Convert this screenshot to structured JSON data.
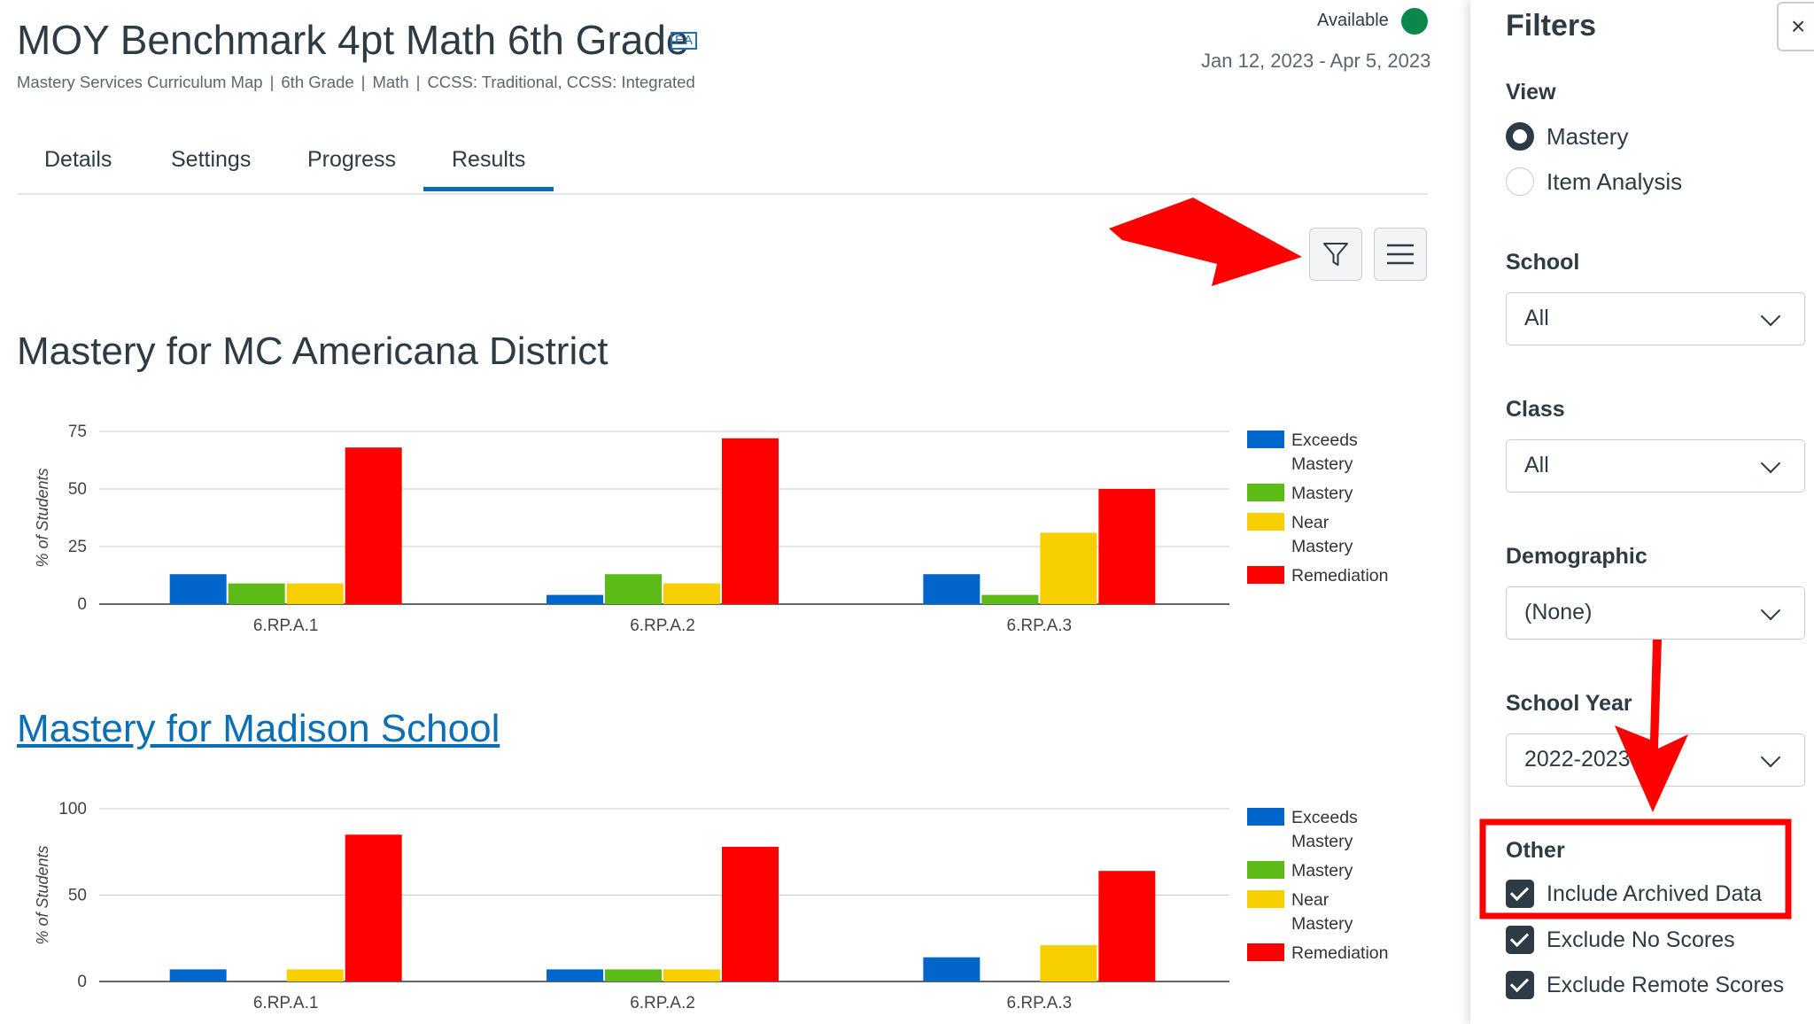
{
  "header": {
    "title": "MOY Benchmark 4pt Math 6th Grade",
    "badge": "EA",
    "breadcrumb": [
      "Mastery Services Curriculum Map",
      "6th Grade",
      "Math",
      "CCSS: Traditional, CCSS: Integrated"
    ],
    "breadcrumb_sep": "|",
    "status": "Available",
    "date_range": "Jan 12, 2023 - Apr 5, 2023"
  },
  "tabs": [
    "Details",
    "Settings",
    "Progress",
    "Results"
  ],
  "active_tab": "Results",
  "toolbar": {
    "filter_icon": "filter-icon",
    "menu_icon": "hamburger-menu-icon"
  },
  "sections": [
    {
      "title": "Mastery for MC Americana District",
      "is_link": false
    },
    {
      "title": "Mastery for Madison School",
      "is_link": true
    }
  ],
  "chart_data": [
    {
      "type": "bar",
      "title": "Mastery for MC Americana District",
      "ylabel": "% of Students",
      "xlabel": "",
      "ylim": [
        0,
        75
      ],
      "yticks": [
        0,
        25,
        50,
        75
      ],
      "categories": [
        "6.RP.A.1",
        "6.RP.A.2",
        "6.RP.A.3"
      ],
      "series": [
        {
          "name": "Exceeds Mastery",
          "color": "#0066cc",
          "values": [
            13,
            4,
            13
          ]
        },
        {
          "name": "Mastery",
          "color": "#5dbb18",
          "values": [
            9,
            13,
            4
          ]
        },
        {
          "name": "Near Mastery",
          "color": "#f7ce00",
          "values": [
            9,
            9,
            31
          ]
        },
        {
          "name": "Remediation",
          "color": "#ff0000",
          "values": [
            68,
            72,
            50
          ]
        }
      ],
      "legend": "right"
    },
    {
      "type": "bar",
      "title": "Mastery for Madison School",
      "ylabel": "% of Students",
      "xlabel": "",
      "ylim": [
        0,
        100
      ],
      "yticks": [
        0,
        50,
        100
      ],
      "categories": [
        "6.RP.A.1",
        "6.RP.A.2",
        "6.RP.A.3"
      ],
      "series": [
        {
          "name": "Exceeds Mastery",
          "color": "#0066cc",
          "values": [
            7,
            7,
            14
          ]
        },
        {
          "name": "Mastery",
          "color": "#5dbb18",
          "values": [
            0,
            7,
            0
          ]
        },
        {
          "name": "Near Mastery",
          "color": "#f7ce00",
          "values": [
            7,
            7,
            21
          ]
        },
        {
          "name": "Remediation",
          "color": "#ff0000",
          "values": [
            85,
            78,
            64
          ]
        }
      ],
      "legend": "right"
    }
  ],
  "filters": {
    "title": "Filters",
    "close": "×",
    "view_label": "View",
    "view_options": [
      {
        "label": "Mastery",
        "checked": true
      },
      {
        "label": "Item Analysis",
        "checked": false
      }
    ],
    "school_label": "School",
    "school_value": "All",
    "class_label": "Class",
    "class_value": "All",
    "demographic_label": "Demographic",
    "demographic_value": "(None)",
    "year_label": "School Year",
    "year_value": "2022-2023",
    "other_label": "Other",
    "other_options": [
      {
        "label": "Include Archived Data",
        "checked": true
      },
      {
        "label": "Exclude No Scores",
        "checked": true
      },
      {
        "label": "Exclude Remote Scores",
        "checked": true
      }
    ]
  },
  "colors": {
    "accent": "#0b6fb6",
    "annotation": "#ff0000",
    "available": "#0b874b"
  }
}
